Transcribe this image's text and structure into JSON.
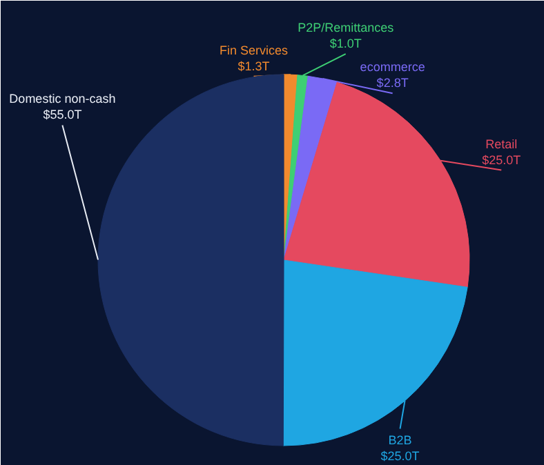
{
  "chart_data": {
    "type": "pie",
    "categories": [
      "Fin Services",
      "P2P/Remittances",
      "ecommerce",
      "Retail",
      "B2B",
      "Domestic non-cash"
    ],
    "values": [
      1.3,
      1.0,
      2.8,
      25.0,
      25.0,
      55.0
    ],
    "value_labels": [
      "$1.3T",
      "$1.0T",
      "$2.8T",
      "$25.0T",
      "$25.0T",
      "$55.0T"
    ],
    "colors": [
      "#f28a2e",
      "#3ecf74",
      "#7a6af5",
      "#e5495f",
      "#1fa6e2",
      "#1b2f62"
    ]
  }
}
